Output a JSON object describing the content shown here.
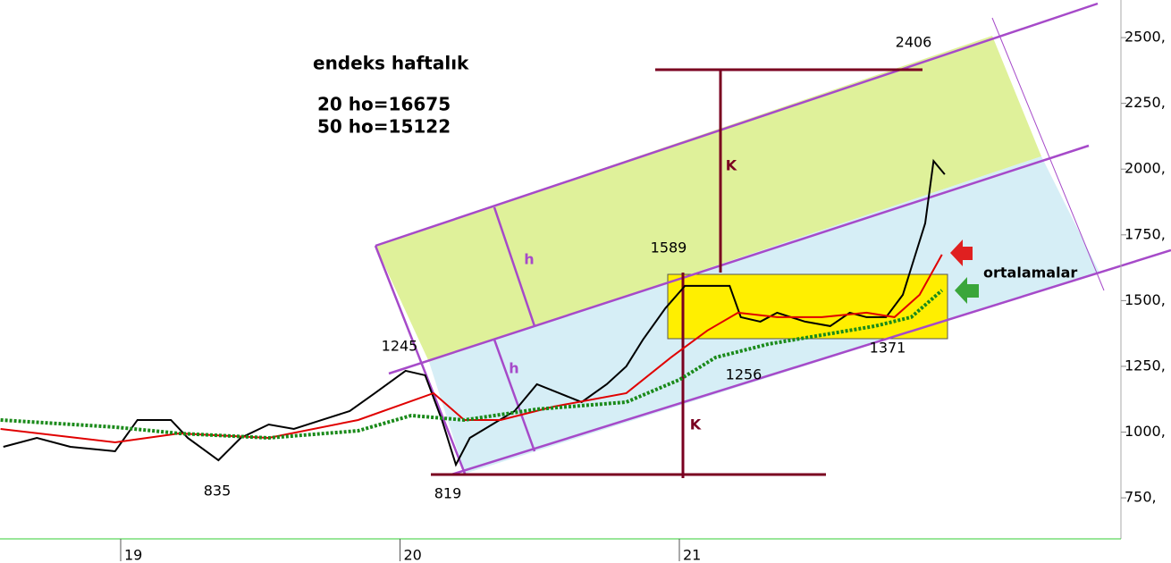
{
  "chart_data": {
    "type": "line",
    "title": "endeks haftalık",
    "subtitle": [
      "20 ho=16675",
      "50 ho=15122"
    ],
    "annotations": [
      "2406",
      "1589",
      "1245",
      "1256",
      "1371",
      "835",
      "819",
      "K",
      "K",
      "h",
      "h",
      "ortalamalar"
    ],
    "xlim": [
      18.568,
      22.568
    ],
    "xticks": [
      19,
      20,
      21
    ],
    "ylim": [
      594,
      2643
    ],
    "yticks": [
      {
        "value": 750,
        "label": "750,"
      },
      {
        "value": 1000,
        "label": "1000,"
      },
      {
        "value": 1250,
        "label": "1250,"
      },
      {
        "value": 1500,
        "label": "1500,"
      },
      {
        "value": 1750,
        "label": "1750,"
      },
      {
        "value": 2000,
        "label": "2000,"
      },
      {
        "value": 2250,
        "label": "2250,"
      },
      {
        "value": 2500,
        "label": "2500,"
      }
    ],
    "series": [
      {
        "color": "#000000",
        "x": [
          18.58,
          18.7,
          18.82,
          18.98,
          19.06,
          19.18,
          19.24,
          19.35,
          19.43,
          19.53,
          19.62,
          19.72,
          19.82,
          19.91,
          20.02,
          20.09,
          20.15,
          20.2,
          20.25,
          20.33,
          20.41,
          20.49,
          20.57,
          20.65,
          20.74,
          20.81,
          20.87,
          20.95,
          21.02,
          21.1,
          21.18,
          21.22,
          21.29,
          21.35,
          21.45,
          21.54,
          21.61,
          21.67,
          21.74,
          21.8,
          21.83,
          21.88,
          21.91,
          21.95
        ],
        "values": [
          944,
          978,
          944,
          927,
          1046,
          1046,
          978,
          893,
          978,
          1029,
          1012,
          1046,
          1080,
          1148,
          1233,
          1216,
          1046,
          876,
          978,
          1029,
          1080,
          1182,
          1148,
          1114,
          1182,
          1250,
          1352,
          1471,
          1556,
          1556,
          1556,
          1437,
          1420,
          1454,
          1420,
          1403,
          1454,
          1437,
          1437,
          1522,
          1624,
          1794,
          2031,
          1980
        ]
      },
      {
        "color": "#e00000",
        "x": [
          18.57,
          18.98,
          19.21,
          19.53,
          19.85,
          20.12,
          20.23,
          20.36,
          20.55,
          20.81,
          20.97,
          21.1,
          21.21,
          21.35,
          21.51,
          21.67,
          21.77,
          21.86,
          21.94
        ],
        "values": [
          1012,
          961,
          995,
          978,
          1046,
          1148,
          1046,
          1046,
          1097,
          1148,
          1284,
          1386,
          1454,
          1437,
          1437,
          1454,
          1437,
          1522,
          1675
        ]
      },
      {
        "color": "#1a8a1a",
        "dashed": true,
        "x": [
          18.57,
          18.98,
          19.21,
          19.53,
          19.85,
          20.04,
          20.23,
          20.49,
          20.81,
          21.0,
          21.13,
          21.32,
          21.51,
          21.7,
          21.83,
          21.94
        ],
        "values": [
          1046,
          1019,
          995,
          978,
          1005,
          1063,
          1046,
          1087,
          1114,
          1199,
          1284,
          1335,
          1369,
          1403,
          1437,
          1539
        ]
      }
    ]
  }
}
